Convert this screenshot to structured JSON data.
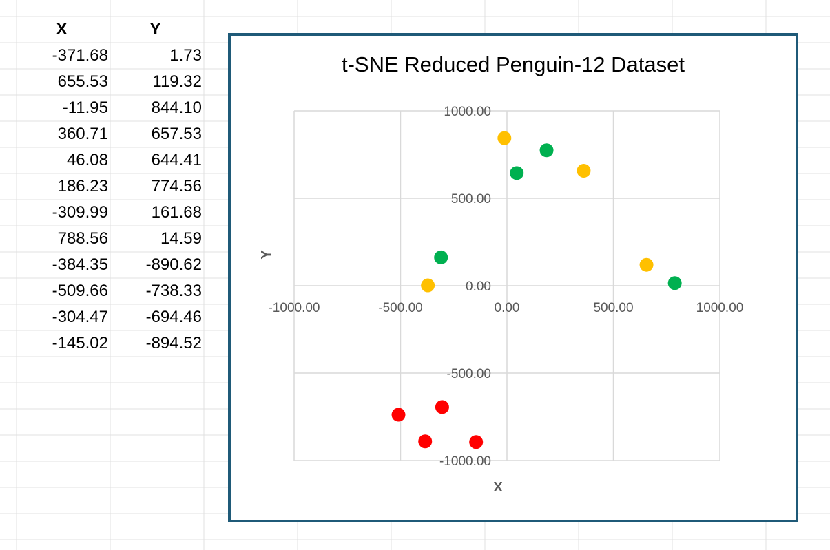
{
  "sheet": {
    "headers": {
      "x": "X",
      "y": "Y"
    },
    "rows": [
      {
        "x": "-371.68",
        "y": "1.73"
      },
      {
        "x": "655.53",
        "y": "119.32"
      },
      {
        "x": "-11.95",
        "y": "844.10"
      },
      {
        "x": "360.71",
        "y": "657.53"
      },
      {
        "x": "46.08",
        "y": "644.41"
      },
      {
        "x": "186.23",
        "y": "774.56"
      },
      {
        "x": "-309.99",
        "y": "161.68"
      },
      {
        "x": "788.56",
        "y": "14.59"
      },
      {
        "x": "-384.35",
        "y": "-890.62"
      },
      {
        "x": "-509.66",
        "y": "-738.33"
      },
      {
        "x": "-304.47",
        "y": "-694.46"
      },
      {
        "x": "-145.02",
        "y": "-894.52"
      }
    ]
  },
  "chart_data": {
    "type": "scatter",
    "title": "t-SNE Reduced Penguin-12 Dataset",
    "xlabel": "X",
    "ylabel": "Y",
    "xlim": [
      -1000,
      1000
    ],
    "ylim": [
      -1000,
      1000
    ],
    "xticks": [
      "-1000.00",
      "-500.00",
      "0.00",
      "500.00",
      "1000.00"
    ],
    "yticks": [
      "-1000.00",
      "-500.00",
      "0.00",
      "500.00",
      "1000.00"
    ],
    "grid": true,
    "legend": "none",
    "points": [
      {
        "x": -371.68,
        "y": 1.73,
        "color": "#ffc000"
      },
      {
        "x": 655.53,
        "y": 119.32,
        "color": "#ffc000"
      },
      {
        "x": -11.95,
        "y": 844.1,
        "color": "#ffc000"
      },
      {
        "x": 360.71,
        "y": 657.53,
        "color": "#ffc000"
      },
      {
        "x": 46.08,
        "y": 644.41,
        "color": "#00b050"
      },
      {
        "x": 186.23,
        "y": 774.56,
        "color": "#00b050"
      },
      {
        "x": -309.99,
        "y": 161.68,
        "color": "#00b050"
      },
      {
        "x": 788.56,
        "y": 14.59,
        "color": "#00b050"
      },
      {
        "x": -384.35,
        "y": -890.62,
        "color": "#ff0000"
      },
      {
        "x": -509.66,
        "y": -738.33,
        "color": "#ff0000"
      },
      {
        "x": -304.47,
        "y": -694.46,
        "color": "#ff0000"
      },
      {
        "x": -145.02,
        "y": -894.52,
        "color": "#ff0000"
      }
    ]
  },
  "colors": {
    "frame": "#1f5a78",
    "gridline": "#d9d9d9",
    "sheet_grid": "#e1e1e1"
  }
}
